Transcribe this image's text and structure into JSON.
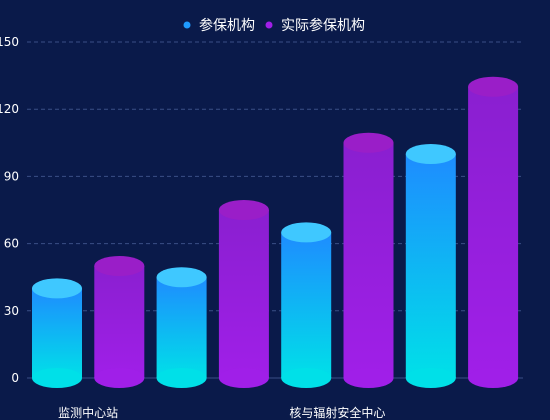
{
  "colors": {
    "background": "#0a1a4a",
    "grid": "#3a4f86",
    "axis_text": "#ffffff",
    "legend_text": "#ffffff",
    "series1_top": "#1e8cff",
    "series1_bottom": "#00e0e8",
    "series1_cap": "#3fc8ff",
    "series1_dot": "#1e9bff",
    "series2_top": "#8a1fd0",
    "series2_bottom": "#a01fe8",
    "series2_cap": "#9a1ec8",
    "series2_dot": "#a01fe8"
  },
  "legend": {
    "items": [
      {
        "label": "参保机构",
        "icon": "dot-icon"
      },
      {
        "label": "实际参保机构",
        "icon": "dot-icon"
      }
    ]
  },
  "chart_data": {
    "type": "bar",
    "categories": [
      "监测中心站",
      "",
      "核与辐射安全中心",
      ""
    ],
    "series": [
      {
        "name": "参保机构",
        "values": [
          40,
          45,
          65,
          100
        ]
      },
      {
        "name": "实际参保机构",
        "values": [
          50,
          75,
          105,
          130
        ]
      }
    ],
    "ylim": [
      0,
      150
    ],
    "yticks": [
      0,
      30,
      60,
      90,
      120,
      150
    ],
    "grid": true,
    "legend_position": "top-center",
    "xlabel": "",
    "ylabel": ""
  }
}
